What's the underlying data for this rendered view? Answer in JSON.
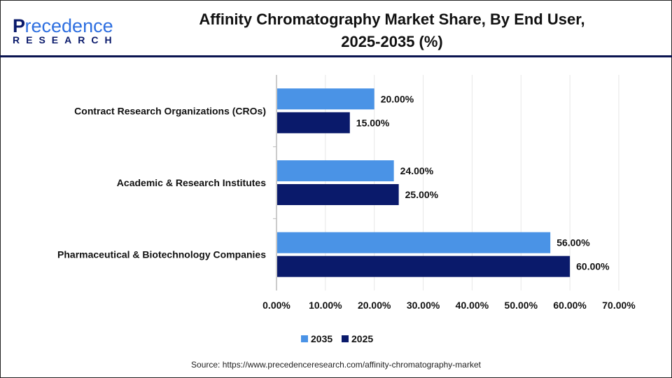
{
  "logo": {
    "brand_part1": "P",
    "brand_part2": "recedence",
    "brand_line2": "RESEARCH"
  },
  "title_line1": "Affinity Chromatography Market Share, By End User,",
  "title_line2": "2025-2035 (%)",
  "source": "Source: https://www.precedenceresearch.com/affinity-chromatography-market",
  "chart_data": {
    "type": "bar",
    "orientation": "horizontal",
    "title": "Affinity Chromatography Market Share, By End User, 2025-2035 (%)",
    "categories": [
      "Contract Research Organizations (CROs)",
      "Academic & Research Institutes",
      "Pharmaceutical & Biotechnology Companies"
    ],
    "series": [
      {
        "name": "2035",
        "color": "#4a93e6",
        "values": [
          20,
          24,
          56
        ],
        "labels": [
          "20.00%",
          "24.00%",
          "56.00%"
        ]
      },
      {
        "name": "2025",
        "color": "#0a1a6b",
        "values": [
          15,
          25,
          60
        ],
        "labels": [
          "15.00%",
          "25.00%",
          "60.00%"
        ]
      }
    ],
    "xlim": [
      0,
      70
    ],
    "xticks": [
      "0.00%",
      "10.00%",
      "20.00%",
      "30.00%",
      "40.00%",
      "50.00%",
      "60.00%",
      "70.00%"
    ],
    "grid": true,
    "legend": "bottom"
  }
}
